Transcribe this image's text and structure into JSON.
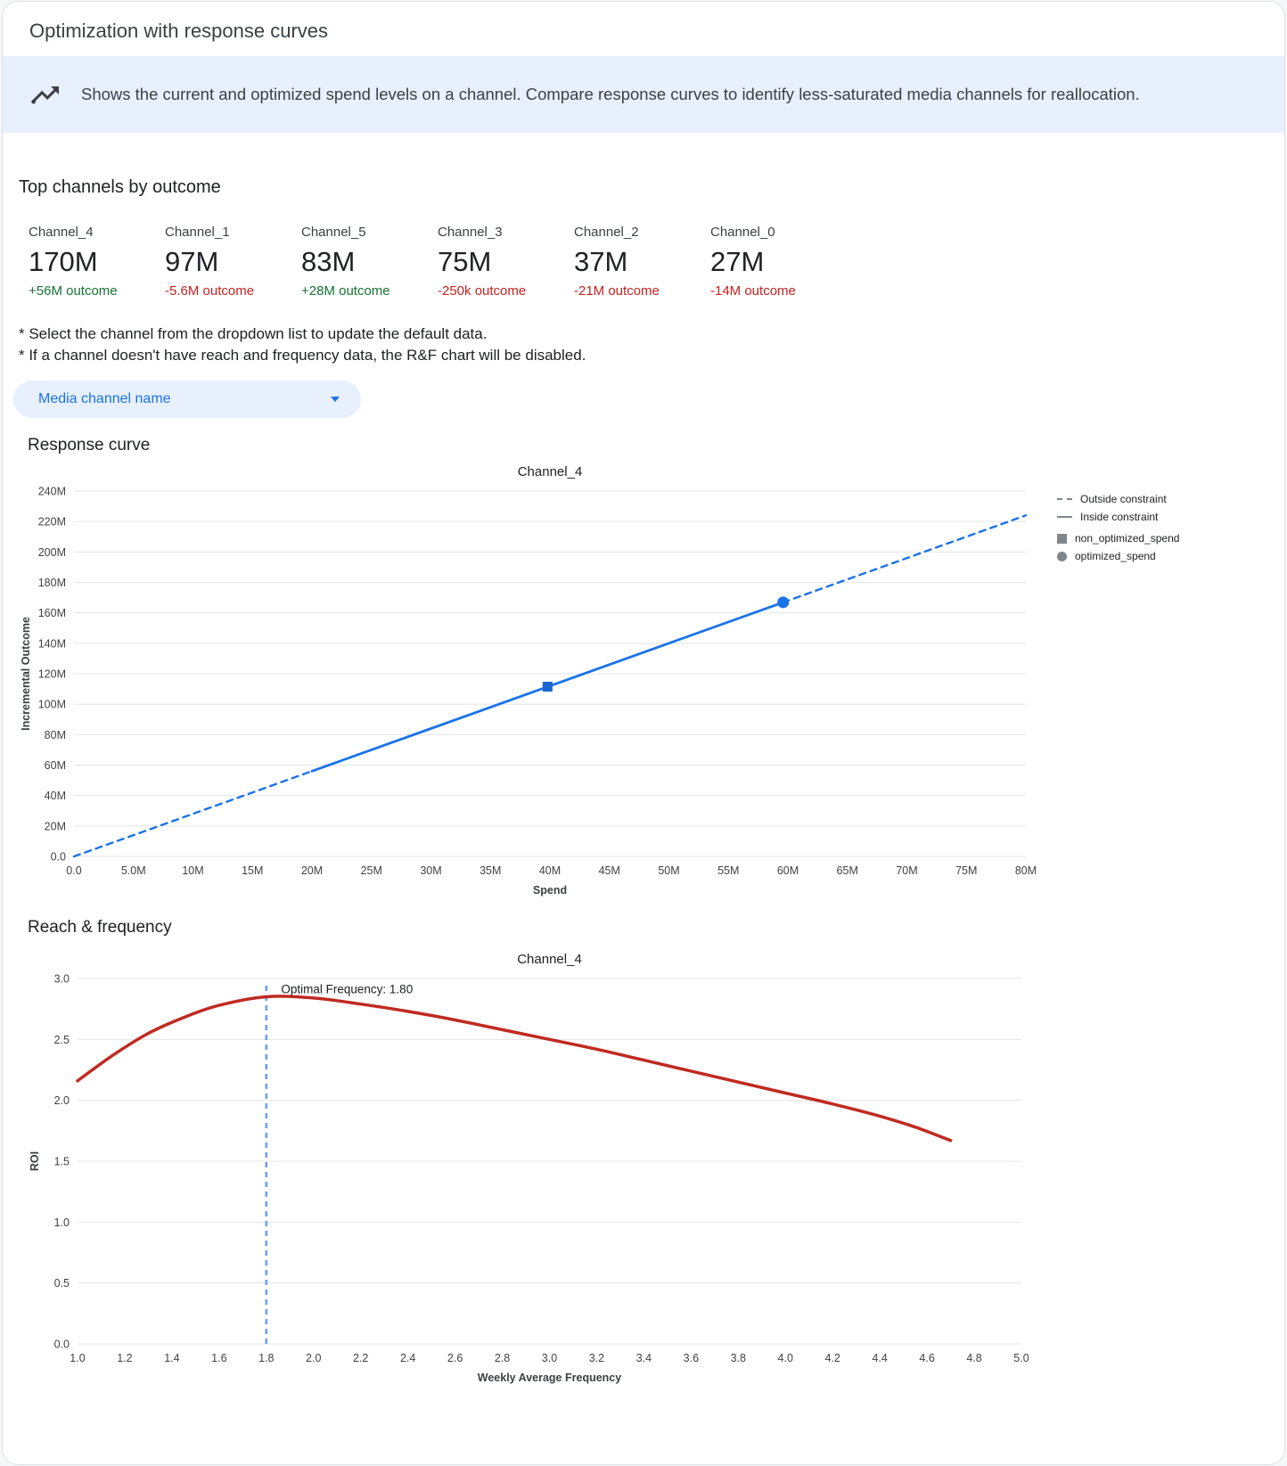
{
  "page": {
    "title": "Optimization with response curves",
    "banner": {
      "icon": "trending-up-icon",
      "bg_color": "#e8f0fe",
      "text": "Shows the current and optimized spend levels on a channel. Compare response curves to identify less-saturated media channels for reallocation."
    }
  },
  "top_channels": {
    "heading": "Top channels by outcome",
    "delta_colors": {
      "up": "#137333",
      "down": "#c5221f"
    },
    "items": [
      {
        "channel": "Channel_4",
        "value": "170M",
        "delta": "+56M outcome",
        "trend": "up"
      },
      {
        "channel": "Channel_1",
        "value": "97M",
        "delta": "-5.6M outcome",
        "trend": "down"
      },
      {
        "channel": "Channel_5",
        "value": "83M",
        "delta": "+28M outcome",
        "trend": "up"
      },
      {
        "channel": "Channel_3",
        "value": "75M",
        "delta": "-250k outcome",
        "trend": "down"
      },
      {
        "channel": "Channel_2",
        "value": "37M",
        "delta": "-21M outcome",
        "trend": "down"
      },
      {
        "channel": "Channel_0",
        "value": "27M",
        "delta": "-14M outcome",
        "trend": "down"
      }
    ]
  },
  "notes": [
    "* Select the channel from the dropdown list to update the default data.",
    "* If a channel doesn't have reach and frequency data, the R&F chart will be disabled."
  ],
  "dropdown": {
    "label": "Media channel name",
    "bg_color": "#e8f0fe",
    "text_color": "#1a73e8"
  },
  "sections": {
    "response_curve": "Response curve",
    "reach_frequency": "Reach & frequency"
  },
  "chart_data": [
    {
      "type": "line",
      "title": "Channel_4",
      "xlabel": "Spend",
      "ylabel": "Incremental Outcome",
      "units": "millions",
      "xlim": [
        0,
        80
      ],
      "ylim": [
        0,
        240
      ],
      "grid": "horizontal",
      "x_ticks": [
        0,
        5,
        10,
        15,
        20,
        25,
        30,
        35,
        40,
        45,
        50,
        55,
        60,
        65,
        70,
        75,
        80
      ],
      "x_tick_labels": [
        "0.0",
        "5.0M",
        "10M",
        "15M",
        "20M",
        "25M",
        "30M",
        "35M",
        "40M",
        "45M",
        "50M",
        "55M",
        "60M",
        "65M",
        "70M",
        "75M",
        "80M"
      ],
      "y_ticks": [
        0,
        20,
        40,
        60,
        80,
        100,
        120,
        140,
        160,
        180,
        200,
        220,
        240
      ],
      "y_tick_labels": [
        "0.0",
        "20M",
        "40M",
        "60M",
        "80M",
        "100M",
        "120M",
        "140M",
        "160M",
        "180M",
        "200M",
        "220M",
        "240M"
      ],
      "series": [
        {
          "name": "outside-constraint-lower",
          "style": "dashed",
          "smooth": false,
          "color": "#1a73e8",
          "width": 2.4,
          "points": [
            [
              0,
              0
            ],
            [
              10,
              28
            ],
            [
              20,
              56
            ]
          ]
        },
        {
          "name": "inside-constraint",
          "style": "solid",
          "smooth": false,
          "color": "#1a73e8",
          "width": 2.8,
          "points": [
            [
              20,
              56
            ],
            [
              30,
              84
            ],
            [
              40,
              112
            ],
            [
              50,
              140
            ],
            [
              59.6,
              166.9
            ]
          ]
        },
        {
          "name": "outside-constraint-upper",
          "style": "dashed",
          "smooth": false,
          "color": "#1a73e8",
          "width": 2.4,
          "points": [
            [
              59.6,
              166.9
            ],
            [
              70,
              196
            ],
            [
              80,
              224
            ]
          ]
        }
      ],
      "markers": [
        {
          "name": "non_optimized_spend",
          "shape": "square",
          "x": 39.8,
          "y": 111.5,
          "color": "#1967d2"
        },
        {
          "name": "optimized_spend",
          "shape": "circle",
          "x": 59.6,
          "y": 166.9,
          "color": "#1a73e8"
        }
      ],
      "legend": {
        "position": "right",
        "entries": [
          {
            "symbol": "dashed-line",
            "label": "Outside constraint"
          },
          {
            "symbol": "solid-line",
            "label": "Inside constraint"
          },
          {
            "symbol": "square",
            "label": "non_optimized_spend"
          },
          {
            "symbol": "circle",
            "label": "optimized_spend"
          }
        ]
      }
    },
    {
      "type": "line",
      "title": "Channel_4",
      "xlabel": "Weekly Average Frequency",
      "ylabel": "ROI",
      "xlim": [
        1.0,
        5.0
      ],
      "ylim": [
        0,
        3.0
      ],
      "grid": "horizontal",
      "x_ticks": [
        1.0,
        1.2,
        1.4,
        1.6,
        1.8,
        2.0,
        2.2,
        2.4,
        2.6,
        2.8,
        3.0,
        3.2,
        3.4,
        3.6,
        3.8,
        4.0,
        4.2,
        4.4,
        4.6,
        4.8,
        5.0
      ],
      "x_tick_labels": [
        "1.0",
        "1.2",
        "1.4",
        "1.6",
        "1.8",
        "2.0",
        "2.2",
        "2.4",
        "2.6",
        "2.8",
        "3.0",
        "3.2",
        "3.4",
        "3.6",
        "3.8",
        "4.0",
        "4.2",
        "4.4",
        "4.6",
        "4.8",
        "5.0"
      ],
      "y_ticks": [
        0,
        0.5,
        1.0,
        1.5,
        2.0,
        2.5,
        3.0
      ],
      "y_tick_labels": [
        "0.0",
        "0.5",
        "1.0",
        "1.5",
        "2.0",
        "2.5",
        "3.0"
      ],
      "series": [
        {
          "name": "roi-by-frequency",
          "style": "solid",
          "smooth": true,
          "color": "#c02a22",
          "width": 3.5,
          "points": [
            [
              1.0,
              2.16
            ],
            [
              1.15,
              2.37
            ],
            [
              1.3,
              2.55
            ],
            [
              1.45,
              2.68
            ],
            [
              1.6,
              2.78
            ],
            [
              1.8,
              2.85
            ],
            [
              2.0,
              2.84
            ],
            [
              2.2,
              2.79
            ],
            [
              2.4,
              2.73
            ],
            [
              2.6,
              2.66
            ],
            [
              2.8,
              2.58
            ],
            [
              3.0,
              2.5
            ],
            [
              3.2,
              2.42
            ],
            [
              3.4,
              2.33
            ],
            [
              3.6,
              2.24
            ],
            [
              3.8,
              2.15
            ],
            [
              4.0,
              2.06
            ],
            [
              4.2,
              1.97
            ],
            [
              4.4,
              1.87
            ],
            [
              4.55,
              1.78
            ],
            [
              4.7,
              1.67
            ]
          ]
        }
      ],
      "vline": {
        "name": "optimal-frequency-line",
        "x": 1.8,
        "y_to": 2.97,
        "color": "#6c9ef8",
        "style": "dashed"
      },
      "annotation": {
        "text": "Optimal Frequency: 1.80",
        "x": 1.84,
        "y": 2.88
      }
    }
  ]
}
